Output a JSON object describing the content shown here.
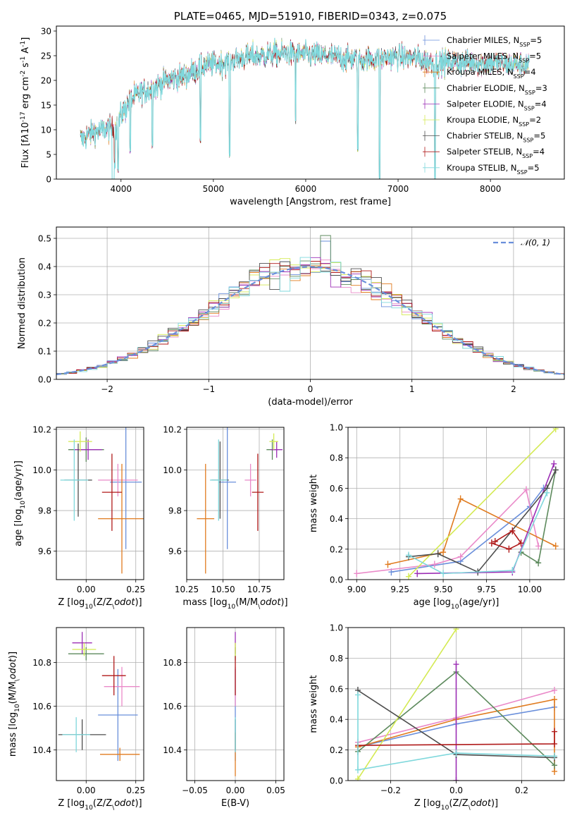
{
  "series_styles": [
    {
      "name": "Chabrier MILES, N$SSP$=5",
      "color": "#6a8fdb"
    },
    {
      "name": "Salpeter MILES, N$SSP$=5",
      "color": "#ea8ac9"
    },
    {
      "name": "Kroupa MILES, N$SSP$=4",
      "color": "#e07b1f"
    },
    {
      "name": "Chabrier ELODIE, N$SSP$=3",
      "color": "#5d8a5d"
    },
    {
      "name": "Salpeter ELODIE, N$SSP$=4",
      "color": "#9c2fb5"
    },
    {
      "name": "Kroupa ELODIE, N$SSP$=2",
      "color": "#d4ea52"
    },
    {
      "name": "Chabrier STELIB, N$SSP$=5",
      "color": "#4d4d4d"
    },
    {
      "name": "Salpeter STELIB, N$SSP$=4",
      "color": "#b01a1a"
    },
    {
      "name": "Kroupa STELIB, N$SSP$=5",
      "color": "#7fd8dc"
    }
  ],
  "chart_data": [
    {
      "id": "spectrum",
      "type": "line",
      "title": "PLATE=0465, MJD=51910, FIBERID=0343, z=0.075",
      "xlabel": "wavelength [Angstrom, rest frame]",
      "ylabel": "Flux [f$\\lambda$10$^{-17}$ erg cm$^{-2}$ s$^{-1}$ A$^{-1}$]",
      "xlim": [
        3300,
        8800
      ],
      "ylim": [
        0,
        31
      ],
      "xticks": [
        4000,
        5000,
        6000,
        7000,
        8000
      ],
      "yticks": [
        0,
        5,
        10,
        15,
        20,
        25,
        30
      ],
      "legend": "top-right",
      "continuum": [
        [
          3560,
          8
        ],
        [
          3650,
          9
        ],
        [
          3800,
          10
        ],
        [
          3950,
          10.5
        ],
        [
          4000,
          13
        ],
        [
          4100,
          16
        ],
        [
          4200,
          17.5
        ],
        [
          4300,
          18
        ],
        [
          4400,
          19
        ],
        [
          4500,
          20
        ],
        [
          4700,
          21
        ],
        [
          4900,
          23
        ],
        [
          5100,
          23.5
        ],
        [
          5300,
          24.5
        ],
        [
          5500,
          25
        ],
        [
          5800,
          25.5
        ],
        [
          6000,
          25.2
        ],
        [
          6200,
          25
        ],
        [
          6400,
          24.5
        ],
        [
          6600,
          24.2
        ],
        [
          6800,
          24.5
        ],
        [
          7000,
          24.8
        ],
        [
          7200,
          24.5
        ],
        [
          7400,
          23.5
        ],
        [
          7600,
          23.8
        ],
        [
          7800,
          23.5
        ],
        [
          8000,
          23.6
        ],
        [
          8200,
          23.3
        ],
        [
          8420,
          23.2
        ]
      ],
      "absorption_lines": [
        [
          3933,
          3
        ],
        [
          3968,
          2
        ],
        [
          4101,
          6
        ],
        [
          4340,
          7
        ],
        [
          4861,
          8
        ],
        [
          5175,
          5
        ],
        [
          5890,
          12
        ],
        [
          6563,
          6
        ],
        [
          6800,
          0
        ],
        [
          7400,
          0
        ]
      ]
    },
    {
      "id": "residuals",
      "type": "step",
      "xlabel": "(data-model)/error",
      "ylabel": "Normed distribution",
      "xlim": [
        -2.5,
        2.5
      ],
      "ylim": [
        0,
        0.54
      ],
      "xticks": [
        -2,
        -1,
        0,
        1,
        2
      ],
      "yticks": [
        0.0,
        0.1,
        0.2,
        0.3,
        0.4,
        0.5
      ],
      "legend_label": "$\\mathcal{N}(0, 1)$",
      "legend": "top-right"
    },
    {
      "id": "age_Z",
      "type": "errorbar",
      "xlabel": "Z [log$_{10}$(Z/Z$_\\odot$)]",
      "ylabel": "age  [log$_{10}$(age/yr)]",
      "xlim": [
        -0.15,
        0.29
      ],
      "ylim": [
        9.46,
        10.21
      ],
      "xticks": [
        0.0,
        0.25
      ],
      "yticks": [
        9.6,
        9.8,
        10.0,
        10.2
      ],
      "points": [
        {
          "x": 0.2,
          "y": 9.94,
          "xe": 0.08,
          "ye": 0.33,
          "c": 0
        },
        {
          "x": 0.16,
          "y": 9.95,
          "xe": 0.1,
          "ye": 0.08,
          "c": 1
        },
        {
          "x": 0.18,
          "y": 9.76,
          "xe": 0.12,
          "ye": 0.27,
          "c": 2
        },
        {
          "x": 0.0,
          "y": 10.1,
          "xe": 0.09,
          "ye": 0.06,
          "c": 3
        },
        {
          "x": 0.01,
          "y": 10.1,
          "xe": 0.07,
          "ye": 0.05,
          "c": 4
        },
        {
          "x": -0.03,
          "y": 10.14,
          "xe": 0.06,
          "ye": 0.05,
          "c": 5
        },
        {
          "x": -0.04,
          "y": 9.95,
          "xe": 0.07,
          "ye": 0.18,
          "c": 6
        },
        {
          "x": 0.13,
          "y": 9.89,
          "xe": 0.05,
          "ye": 0.19,
          "c": 7
        },
        {
          "x": -0.06,
          "y": 9.95,
          "xe": 0.07,
          "ye": 0.2,
          "c": 8
        }
      ]
    },
    {
      "id": "age_mass",
      "type": "errorbar",
      "xlabel": "mass [log$_{10}$(M/M$_\\odot$)]",
      "ylabel": "",
      "xlim": [
        10.25,
        10.92
      ],
      "ylim": [
        9.46,
        10.21
      ],
      "xticks": [
        10.25,
        10.5,
        10.75
      ],
      "yticks": [
        9.6,
        9.8,
        10.0,
        10.2
      ],
      "points": [
        {
          "x": 10.53,
          "y": 9.94,
          "xe": 0.06,
          "ye": 0.33,
          "c": 0
        },
        {
          "x": 10.69,
          "y": 9.95,
          "xe": 0.04,
          "ye": 0.08,
          "c": 1
        },
        {
          "x": 10.38,
          "y": 9.76,
          "xe": 0.06,
          "ye": 0.27,
          "c": 2
        },
        {
          "x": 10.84,
          "y": 10.1,
          "xe": 0.04,
          "ye": 0.05,
          "c": 3
        },
        {
          "x": 10.87,
          "y": 10.1,
          "xe": 0.04,
          "ye": 0.04,
          "c": 4
        },
        {
          "x": 10.85,
          "y": 10.14,
          "xe": 0.03,
          "ye": 0.04,
          "c": 5
        },
        {
          "x": 10.48,
          "y": 9.95,
          "xe": 0.06,
          "ye": 0.19,
          "c": 6
        },
        {
          "x": 10.74,
          "y": 9.89,
          "xe": 0.04,
          "ye": 0.19,
          "c": 7
        },
        {
          "x": 10.47,
          "y": 9.95,
          "xe": 0.06,
          "ye": 0.2,
          "c": 8
        }
      ]
    },
    {
      "id": "mw_age",
      "type": "line",
      "xlabel": "age  [log$_{10}$(age/yr)]",
      "ylabel": "mass weight",
      "xlim": [
        8.95,
        10.2
      ],
      "ylim": [
        0,
        1
      ],
      "xticks": [
        9.0,
        9.25,
        9.5,
        9.75,
        10.0
      ],
      "yticks": [
        0.0,
        0.2,
        0.4,
        0.6,
        0.8,
        1.0
      ],
      "series": [
        {
          "c": 0,
          "x": [
            9.2,
            9.6,
            10.0,
            10.08
          ],
          "y": [
            0.05,
            0.12,
            0.48,
            0.6
          ]
        },
        {
          "c": 1,
          "x": [
            9.0,
            9.45,
            9.6,
            9.98,
            10.05
          ],
          "y": [
            0.04,
            0.1,
            0.15,
            0.59,
            0.22
          ]
        },
        {
          "c": 2,
          "x": [
            9.18,
            9.5,
            9.6,
            10.15
          ],
          "y": [
            0.1,
            0.18,
            0.53,
            0.22
          ]
        },
        {
          "c": 3,
          "x": [
            9.95,
            10.05,
            10.15
          ],
          "y": [
            0.18,
            0.11,
            0.72
          ]
        },
        {
          "c": 4,
          "x": [
            9.35,
            9.9,
            10.14
          ],
          "y": [
            0.04,
            0.05,
            0.76
          ]
        },
        {
          "c": 5,
          "x": [
            9.3,
            10.15
          ],
          "y": [
            0.02,
            0.99
          ]
        },
        {
          "c": 6,
          "x": [
            9.3,
            9.47,
            9.7,
            10.1,
            10.15
          ],
          "y": [
            0.15,
            0.17,
            0.05,
            0.6,
            0.72
          ]
        },
        {
          "c": 7,
          "x": [
            9.8,
            9.9,
            9.95,
            9.88,
            9.78
          ],
          "y": [
            0.25,
            0.32,
            0.24,
            0.2,
            0.24
          ]
        },
        {
          "c": 8,
          "x": [
            9.3,
            9.5,
            9.9,
            10.1
          ],
          "y": [
            0.16,
            0.04,
            0.06,
            0.57
          ]
        }
      ]
    },
    {
      "id": "mass_Z",
      "type": "errorbar",
      "xlabel": "Z [log$_{10}$(Z/Z$_\\odot$)]",
      "ylabel": "mass [log$_{10}$(M/M$_\\odot$)]",
      "xlim": [
        -0.15,
        0.29
      ],
      "ylim": [
        10.26,
        10.96
      ],
      "xticks": [
        0.0,
        0.25
      ],
      "yticks": [
        10.4,
        10.6,
        10.8
      ],
      "points": [
        {
          "x": 0.16,
          "y": 10.56,
          "xe": 0.1,
          "ye": 0.21,
          "c": 0
        },
        {
          "x": 0.18,
          "y": 10.69,
          "xe": 0.09,
          "ye": 0.09,
          "c": 1
        },
        {
          "x": 0.17,
          "y": 10.38,
          "xe": 0.1,
          "ye": 0.03,
          "c": 2
        },
        {
          "x": 0.0,
          "y": 10.84,
          "xe": 0.09,
          "ye": 0.03,
          "c": 3
        },
        {
          "x": -0.02,
          "y": 10.89,
          "xe": 0.05,
          "ye": 0.05,
          "c": 4
        },
        {
          "x": -0.01,
          "y": 10.86,
          "xe": 0.06,
          "ye": 0.03,
          "c": 5
        },
        {
          "x": -0.02,
          "y": 10.47,
          "xe": 0.12,
          "ye": 0.07,
          "c": 6
        },
        {
          "x": 0.14,
          "y": 10.74,
          "xe": 0.06,
          "ye": 0.09,
          "c": 7
        },
        {
          "x": -0.05,
          "y": 10.47,
          "xe": 0.07,
          "ye": 0.08,
          "c": 8
        }
      ]
    },
    {
      "id": "mass_ebv",
      "type": "errorbar",
      "xlabel": "E(B-V)",
      "ylabel": "",
      "xlim": [
        -0.06,
        0.06
      ],
      "ylim": [
        10.26,
        10.96
      ],
      "xticks": [
        -0.05,
        0.0,
        0.05
      ],
      "yticks": [
        10.4,
        10.6,
        10.8
      ],
      "points": [
        {
          "x": 0.0,
          "y": 10.56,
          "xe": 0,
          "ye": 0.21,
          "c": 0
        },
        {
          "x": 0.0,
          "y": 10.69,
          "xe": 0,
          "ye": 0.09,
          "c": 1
        },
        {
          "x": 0.0,
          "y": 10.38,
          "xe": 0,
          "ye": 0.1,
          "c": 2
        },
        {
          "x": 0.0,
          "y": 10.84,
          "xe": 0,
          "ye": 0.03,
          "c": 3
        },
        {
          "x": 0.0,
          "y": 10.89,
          "xe": 0,
          "ye": 0.05,
          "c": 4
        },
        {
          "x": 0.0,
          "y": 10.86,
          "xe": 0,
          "ye": 0.03,
          "c": 5
        },
        {
          "x": 0.0,
          "y": 10.47,
          "xe": 0,
          "ye": 0.07,
          "c": 6
        },
        {
          "x": 0.0,
          "y": 10.74,
          "xe": 0,
          "ye": 0.09,
          "c": 7
        },
        {
          "x": 0.0,
          "y": 10.47,
          "xe": 0,
          "ye": 0.08,
          "c": 8
        }
      ]
    },
    {
      "id": "mw_Z",
      "type": "line",
      "xlabel": "Z [log$_{10}$(Z/Z$_\\odot$)]",
      "ylabel": "mass weight",
      "xlim": [
        -0.33,
        0.33
      ],
      "ylim": [
        0,
        1
      ],
      "xticks": [
        -0.2,
        0.0,
        0.2
      ],
      "yticks": [
        0.0,
        0.2,
        0.4,
        0.6,
        0.8,
        1.0
      ],
      "series": [
        {
          "c": 0,
          "x": [
            -0.3,
            0.0,
            0.3
          ],
          "y": [
            0.22,
            0.37,
            0.48
          ]
        },
        {
          "c": 1,
          "x": [
            -0.3,
            0.0,
            0.3
          ],
          "y": [
            0.25,
            0.41,
            0.59
          ]
        },
        {
          "c": 2,
          "x": [
            -0.3,
            0.0,
            0.3,
            0.3
          ],
          "y": [
            0.22,
            0.4,
            0.53,
            0.06
          ]
        },
        {
          "c": 3,
          "x": [
            -0.3,
            0.0,
            0.3
          ],
          "y": [
            0.19,
            0.71,
            0.1
          ]
        },
        {
          "c": 4,
          "x": [
            0.0,
            0.0
          ],
          "y": [
            0.0,
            0.76
          ]
        },
        {
          "c": 5,
          "x": [
            -0.3,
            0.0
          ],
          "y": [
            0.01,
            0.99
          ]
        },
        {
          "c": 6,
          "x": [
            -0.3,
            0.0,
            0.3
          ],
          "y": [
            0.59,
            0.17,
            0.15
          ]
        },
        {
          "c": 7,
          "x": [
            -0.3,
            0.3,
            0.3
          ],
          "y": [
            0.23,
            0.24,
            0.32
          ]
        },
        {
          "c": 8,
          "x": [
            -0.3,
            -0.3,
            0.0,
            0.3
          ],
          "y": [
            0.56,
            0.07,
            0.18,
            0.16
          ]
        }
      ]
    }
  ]
}
